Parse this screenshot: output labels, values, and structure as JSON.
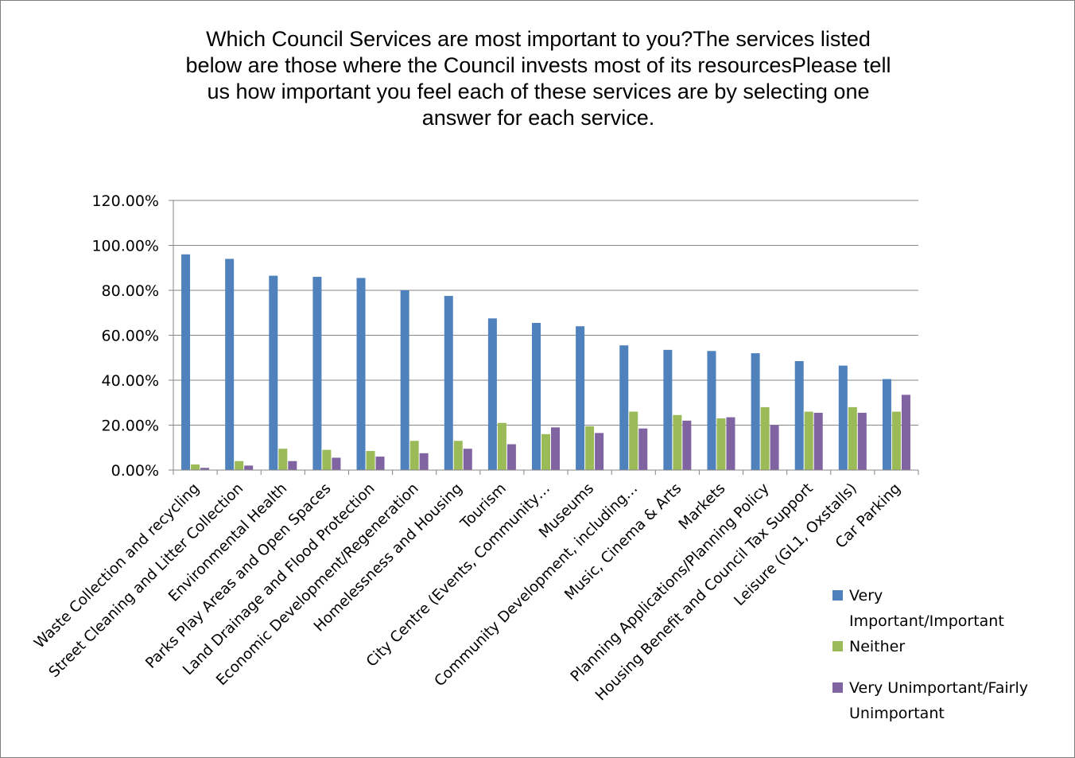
{
  "chart_data": {
    "type": "bar",
    "title_lines": [
      "Which Council Services are most important to you?The services listed",
      "below are those where the Council invests most of its resourcesPlease tell",
      "us how important you feel each of these services are by selecting one",
      "answer for each service."
    ],
    "categories": [
      "Waste Collection and recycling",
      "Street Cleaning and Litter Collection",
      "Environmental Health",
      "Parks Play Areas and Open Spaces",
      "Land Drainage and Flood Protection",
      "Economic Development/Regeneration",
      "Homelessness and Housing",
      "Tourism",
      "City Centre (Events, Community…",
      "Museums",
      "Community Development, including…",
      "Music, Cinema & Arts",
      "Markets",
      "Planning Applications/Planning Policy",
      "Housing Benefit and Council Tax Support",
      "Leisure (GL1, Oxstalls)",
      "Car Parking"
    ],
    "series": [
      {
        "name": "Very Important/Important",
        "color": "#4f81bd",
        "values": [
          96,
          94,
          86.5,
          86,
          85.5,
          80,
          77.5,
          67.5,
          65.5,
          64,
          55.5,
          53.5,
          53,
          52,
          48.5,
          46.5,
          40.5
        ]
      },
      {
        "name": "Neither",
        "color": "#9bbb59",
        "values": [
          2.5,
          4,
          9.5,
          9,
          8.5,
          13,
          13,
          21,
          16,
          19.5,
          26,
          24.5,
          23,
          28,
          26,
          28,
          26
        ]
      },
      {
        "name": "Very Unimportant/Fairly Unimportant",
        "color": "#8064a2",
        "values": [
          1,
          2,
          4,
          5.5,
          6,
          7.5,
          9.5,
          11.5,
          19,
          16.5,
          18.5,
          22,
          23.5,
          20,
          25.5,
          25.5,
          33.5
        ]
      }
    ],
    "y_ticks": [
      "0.00%",
      "20.00%",
      "40.00%",
      "60.00%",
      "80.00%",
      "100.00%",
      "120.00%"
    ],
    "ylim": [
      0,
      120
    ],
    "grid": true,
    "legend_position": "right",
    "legend_lines": [
      [
        "Very",
        "Important/Important"
      ],
      [
        "Neither"
      ],
      [
        "Very Unimportant/Fairly",
        "Unimportant"
      ]
    ]
  }
}
